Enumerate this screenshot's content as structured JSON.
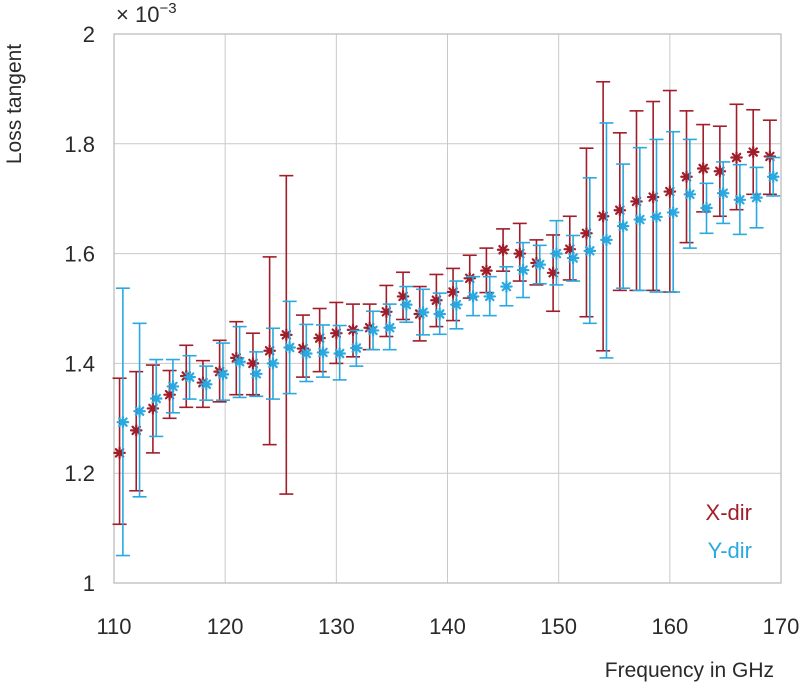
{
  "chart_data": {
    "type": "scatter",
    "xlabel": "Frequency in GHz",
    "ylabel": "Loss tangent",
    "y_multiplier_label": "× 10",
    "y_multiplier_exponent": "−3",
    "xlim": [
      110,
      170
    ],
    "ylim": [
      1,
      2
    ],
    "x_ticks": [
      110,
      120,
      130,
      140,
      150,
      160,
      170
    ],
    "y_ticks": [
      1,
      1.2,
      1.4,
      1.6,
      1.8,
      2
    ],
    "x_tick_labels": [
      "110",
      "120",
      "130",
      "140",
      "150",
      "160",
      "170"
    ],
    "y_tick_labels": [
      "1",
      "1.2",
      "1.4",
      "1.6",
      "1.8",
      "2"
    ],
    "grid": true,
    "legend_position": "bottom-right",
    "series": [
      {
        "name": "X-dir",
        "color": "#a11d2a",
        "marker": "asterisk",
        "points": [
          {
            "x": 110.5,
            "y": 1.237,
            "lo": 1.107,
            "hi": 1.373
          },
          {
            "x": 112.0,
            "y": 1.278,
            "lo": 1.168,
            "hi": 1.385
          },
          {
            "x": 113.5,
            "y": 1.318,
            "lo": 1.237,
            "hi": 1.397
          },
          {
            "x": 115.0,
            "y": 1.343,
            "lo": 1.3,
            "hi": 1.387
          },
          {
            "x": 116.5,
            "y": 1.377,
            "lo": 1.32,
            "hi": 1.433
          },
          {
            "x": 118.0,
            "y": 1.365,
            "lo": 1.32,
            "hi": 1.405
          },
          {
            "x": 119.5,
            "y": 1.385,
            "lo": 1.33,
            "hi": 1.442
          },
          {
            "x": 121.0,
            "y": 1.41,
            "lo": 1.343,
            "hi": 1.476
          },
          {
            "x": 122.5,
            "y": 1.4,
            "lo": 1.343,
            "hi": 1.455
          },
          {
            "x": 124.0,
            "y": 1.423,
            "lo": 1.252,
            "hi": 1.594
          },
          {
            "x": 125.5,
            "y": 1.452,
            "lo": 1.162,
            "hi": 1.742
          },
          {
            "x": 127.0,
            "y": 1.427,
            "lo": 1.375,
            "hi": 1.488
          },
          {
            "x": 128.5,
            "y": 1.446,
            "lo": 1.385,
            "hi": 1.5
          },
          {
            "x": 130.0,
            "y": 1.455,
            "lo": 1.4,
            "hi": 1.511
          },
          {
            "x": 131.5,
            "y": 1.461,
            "lo": 1.412,
            "hi": 1.508
          },
          {
            "x": 133.0,
            "y": 1.465,
            "lo": 1.425,
            "hi": 1.508
          },
          {
            "x": 134.5,
            "y": 1.494,
            "lo": 1.449,
            "hi": 1.542
          },
          {
            "x": 136.0,
            "y": 1.522,
            "lo": 1.48,
            "hi": 1.566
          },
          {
            "x": 137.5,
            "y": 1.49,
            "lo": 1.441,
            "hi": 1.54
          },
          {
            "x": 139.0,
            "y": 1.515,
            "lo": 1.467,
            "hi": 1.562
          },
          {
            "x": 140.5,
            "y": 1.53,
            "lo": 1.478,
            "hi": 1.573
          },
          {
            "x": 142.0,
            "y": 1.555,
            "lo": 1.519,
            "hi": 1.597
          },
          {
            "x": 143.5,
            "y": 1.569,
            "lo": 1.529,
            "hi": 1.61
          },
          {
            "x": 145.0,
            "y": 1.607,
            "lo": 1.568,
            "hi": 1.645
          },
          {
            "x": 146.5,
            "y": 1.6,
            "lo": 1.55,
            "hi": 1.655
          },
          {
            "x": 148.0,
            "y": 1.583,
            "lo": 1.543,
            "hi": 1.625
          },
          {
            "x": 149.5,
            "y": 1.565,
            "lo": 1.495,
            "hi": 1.634
          },
          {
            "x": 151.0,
            "y": 1.608,
            "lo": 1.552,
            "hi": 1.668
          },
          {
            "x": 152.5,
            "y": 1.637,
            "lo": 1.485,
            "hi": 1.792
          },
          {
            "x": 154.0,
            "y": 1.668,
            "lo": 1.423,
            "hi": 1.913
          },
          {
            "x": 155.5,
            "y": 1.679,
            "lo": 1.533,
            "hi": 1.82
          },
          {
            "x": 157.0,
            "y": 1.695,
            "lo": 1.533,
            "hi": 1.86
          },
          {
            "x": 158.5,
            "y": 1.703,
            "lo": 1.533,
            "hi": 1.877
          },
          {
            "x": 160.0,
            "y": 1.713,
            "lo": 1.53,
            "hi": 1.897
          },
          {
            "x": 161.5,
            "y": 1.74,
            "lo": 1.62,
            "hi": 1.86
          },
          {
            "x": 163.0,
            "y": 1.755,
            "lo": 1.676,
            "hi": 1.835
          },
          {
            "x": 164.5,
            "y": 1.75,
            "lo": 1.668,
            "hi": 1.832
          },
          {
            "x": 166.0,
            "y": 1.775,
            "lo": 1.68,
            "hi": 1.872
          },
          {
            "x": 167.5,
            "y": 1.785,
            "lo": 1.708,
            "hi": 1.862
          },
          {
            "x": 169.0,
            "y": 1.777,
            "lo": 1.708,
            "hi": 1.843
          }
        ]
      },
      {
        "name": "Y-dir",
        "color": "#29a9e0",
        "marker": "asterisk",
        "points": [
          {
            "x": 110.8,
            "y": 1.293,
            "lo": 1.05,
            "hi": 1.537
          },
          {
            "x": 112.3,
            "y": 1.313,
            "lo": 1.157,
            "hi": 1.473
          },
          {
            "x": 113.8,
            "y": 1.336,
            "lo": 1.267,
            "hi": 1.407
          },
          {
            "x": 115.3,
            "y": 1.358,
            "lo": 1.31,
            "hi": 1.407
          },
          {
            "x": 116.8,
            "y": 1.375,
            "lo": 1.335,
            "hi": 1.414
          },
          {
            "x": 118.3,
            "y": 1.362,
            "lo": 1.333,
            "hi": 1.395
          },
          {
            "x": 119.8,
            "y": 1.38,
            "lo": 1.333,
            "hi": 1.437
          },
          {
            "x": 121.3,
            "y": 1.403,
            "lo": 1.338,
            "hi": 1.467
          },
          {
            "x": 122.8,
            "y": 1.381,
            "lo": 1.34,
            "hi": 1.421
          },
          {
            "x": 124.3,
            "y": 1.4,
            "lo": 1.335,
            "hi": 1.464
          },
          {
            "x": 125.8,
            "y": 1.429,
            "lo": 1.345,
            "hi": 1.513
          },
          {
            "x": 127.3,
            "y": 1.418,
            "lo": 1.367,
            "hi": 1.471
          },
          {
            "x": 128.8,
            "y": 1.42,
            "lo": 1.375,
            "hi": 1.47
          },
          {
            "x": 130.3,
            "y": 1.418,
            "lo": 1.37,
            "hi": 1.469
          },
          {
            "x": 131.8,
            "y": 1.428,
            "lo": 1.395,
            "hi": 1.46
          },
          {
            "x": 133.3,
            "y": 1.46,
            "lo": 1.425,
            "hi": 1.495
          },
          {
            "x": 134.8,
            "y": 1.465,
            "lo": 1.425,
            "hi": 1.508
          },
          {
            "x": 136.3,
            "y": 1.507,
            "lo": 1.475,
            "hi": 1.54
          },
          {
            "x": 137.8,
            "y": 1.493,
            "lo": 1.452,
            "hi": 1.535
          },
          {
            "x": 139.3,
            "y": 1.49,
            "lo": 1.453,
            "hi": 1.528
          },
          {
            "x": 140.8,
            "y": 1.507,
            "lo": 1.463,
            "hi": 1.55
          },
          {
            "x": 142.3,
            "y": 1.522,
            "lo": 1.487,
            "hi": 1.558
          },
          {
            "x": 143.8,
            "y": 1.522,
            "lo": 1.487,
            "hi": 1.558
          },
          {
            "x": 145.3,
            "y": 1.54,
            "lo": 1.505,
            "hi": 1.576
          },
          {
            "x": 146.8,
            "y": 1.57,
            "lo": 1.52,
            "hi": 1.62
          },
          {
            "x": 148.3,
            "y": 1.58,
            "lo": 1.545,
            "hi": 1.615
          },
          {
            "x": 149.8,
            "y": 1.6,
            "lo": 1.543,
            "hi": 1.66
          },
          {
            "x": 151.3,
            "y": 1.592,
            "lo": 1.55,
            "hi": 1.633
          },
          {
            "x": 152.8,
            "y": 1.605,
            "lo": 1.473,
            "hi": 1.738
          },
          {
            "x": 154.3,
            "y": 1.625,
            "lo": 1.41,
            "hi": 1.838
          },
          {
            "x": 155.8,
            "y": 1.65,
            "lo": 1.537,
            "hi": 1.763
          },
          {
            "x": 157.3,
            "y": 1.662,
            "lo": 1.533,
            "hi": 1.793
          },
          {
            "x": 158.8,
            "y": 1.667,
            "lo": 1.53,
            "hi": 1.808
          },
          {
            "x": 160.3,
            "y": 1.675,
            "lo": 1.53,
            "hi": 1.822
          },
          {
            "x": 161.8,
            "y": 1.708,
            "lo": 1.61,
            "hi": 1.808
          },
          {
            "x": 163.3,
            "y": 1.683,
            "lo": 1.637,
            "hi": 1.728
          },
          {
            "x": 164.8,
            "y": 1.71,
            "lo": 1.655,
            "hi": 1.767
          },
          {
            "x": 166.3,
            "y": 1.698,
            "lo": 1.635,
            "hi": 1.762
          },
          {
            "x": 167.8,
            "y": 1.702,
            "lo": 1.647,
            "hi": 1.757
          },
          {
            "x": 169.3,
            "y": 1.74,
            "lo": 1.705,
            "hi": 1.775
          }
        ]
      }
    ]
  }
}
